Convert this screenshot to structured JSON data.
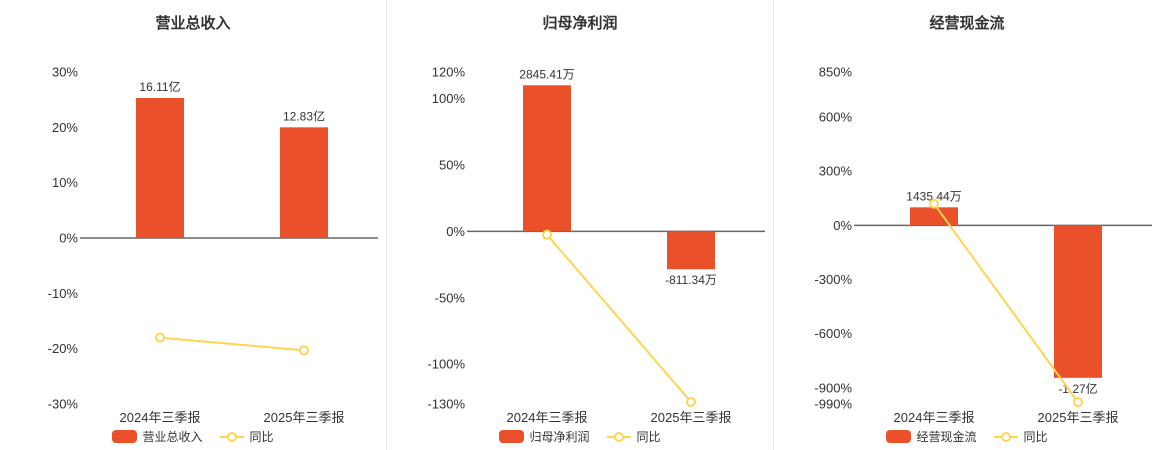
{
  "colors": {
    "bar": "#ea5029",
    "line": "#ffd450",
    "axis": "#666666",
    "text": "#333333",
    "divider": "#e3e3e3"
  },
  "chart_data": [
    {
      "type": "bar",
      "title": "营业总收入",
      "categories": [
        "2024年三季报",
        "2025年三季报"
      ],
      "bar_series": {
        "name": "营业总收入",
        "value_labels": [
          "16.11亿",
          "12.83亿"
        ],
        "plot_pct": [
          25.3,
          20.0
        ]
      },
      "line_series": {
        "name": "同比",
        "values_pct": [
          -18.0,
          -20.3
        ]
      },
      "y_ticks_pct": [
        30,
        20,
        10,
        0,
        -10,
        -20,
        -30
      ],
      "ylim": [
        -30,
        30
      ],
      "legend_position": "bottom",
      "grid": false
    },
    {
      "type": "bar",
      "title": "归母净利润",
      "categories": [
        "2024年三季报",
        "2025年三季报"
      ],
      "bar_series": {
        "name": "归母净利润",
        "value_labels": [
          "2845.41万",
          "-811.34万"
        ],
        "plot_pct": [
          110,
          -28.5
        ]
      },
      "line_series": {
        "name": "同比",
        "values_pct": [
          -2.5,
          -128.5
        ]
      },
      "y_ticks_pct": [
        120,
        100,
        50,
        0,
        -50,
        -100,
        -130
      ],
      "ylim": [
        -130,
        120
      ],
      "legend_position": "bottom",
      "grid": false
    },
    {
      "type": "bar",
      "title": "经营现金流",
      "categories": [
        "2024年三季报",
        "2025年三季报"
      ],
      "bar_series": {
        "name": "经营现金流",
        "value_labels": [
          "1435.44万",
          "-1.27亿"
        ],
        "plot_pct": [
          100,
          -845
        ]
      },
      "line_series": {
        "name": "同比",
        "values_pct": [
          120,
          -980
        ]
      },
      "y_ticks_pct": [
        850,
        600,
        300,
        0,
        -300,
        -600,
        -900,
        -990
      ],
      "ylim": [
        -990,
        850
      ],
      "legend_position": "bottom",
      "grid": false
    }
  ]
}
